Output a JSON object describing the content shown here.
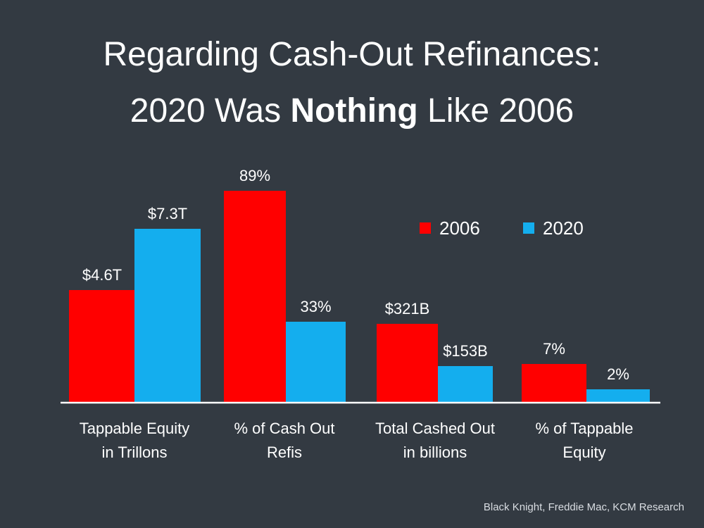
{
  "title": {
    "line1": "Regarding Cash-Out Refinances:",
    "line2_pre": "2020 Was ",
    "line2_bold": "Nothing",
    "line2_post": " Like 2006"
  },
  "source": "Black Knight, Freddie Mac, KCM Research",
  "colors": {
    "background": "#333a42",
    "2006": "#ff0000",
    "2020": "#14aeee",
    "axis": "#ffffff"
  },
  "chart_data": {
    "type": "bar",
    "title": "",
    "xlabel": "",
    "ylabel": "",
    "grid": false,
    "legend_position": "top-right",
    "categories": [
      [
        "Tappable Equity",
        "in Trillons"
      ],
      [
        "% of Cash Out",
        "Refis"
      ],
      [
        "Total Cashed Out",
        "in billions"
      ],
      [
        "% of Tappable",
        "Equity"
      ]
    ],
    "series": [
      {
        "name": "2006",
        "color": "#ff0000",
        "labels": [
          "$4.6T",
          "89%",
          "$321B",
          "7%"
        ],
        "values": [
          4.6,
          89,
          321,
          7
        ]
      },
      {
        "name": "2020",
        "color": "#14aeee",
        "labels": [
          "$7.3T",
          "33%",
          "$153B",
          "2%"
        ],
        "values": [
          7.3,
          33,
          153,
          2
        ]
      }
    ],
    "bar_fraction_of_max": [
      [
        0.53,
        0.82
      ],
      [
        1.0,
        0.38
      ],
      [
        0.37,
        0.17
      ],
      [
        0.18,
        0.06
      ]
    ]
  }
}
